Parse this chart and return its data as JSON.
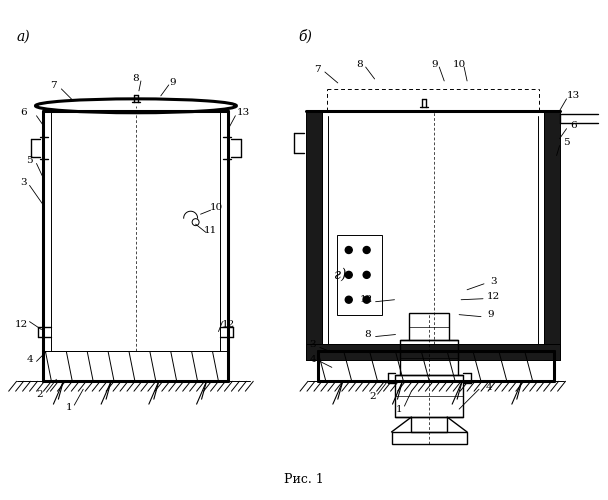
{
  "bg_color": "#ffffff",
  "line_color": "#000000",
  "fig_width": 6.08,
  "fig_height": 5.0,
  "dpi": 100,
  "caption": "Рис. 1",
  "label_a": "а)",
  "label_b": "б)",
  "label_g": "г)"
}
